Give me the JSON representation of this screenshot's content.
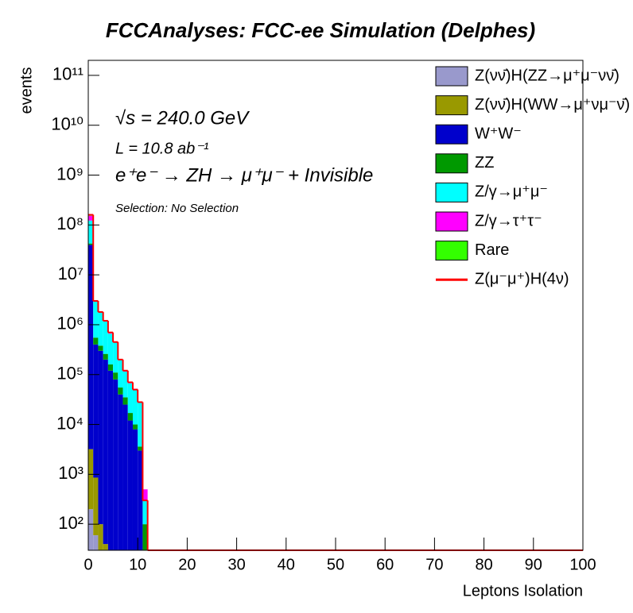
{
  "chart_data": {
    "type": "stacked_histogram",
    "title": "FCCAnalyses: FCC-ee Simulation (Delphes)",
    "annotations": [
      "√s = 240.0 GeV",
      "L = 10.8 ab⁻¹",
      "e⁺e⁻ → ZH → μ⁺μ⁻ + Invisible",
      "Selection: No Selection"
    ],
    "x_label": "Leptons Isolation",
    "y_label": "events",
    "bins": [
      0,
      1,
      2,
      3,
      4,
      5,
      6,
      7,
      8,
      9,
      10,
      11,
      12,
      100
    ],
    "series": [
      {
        "name": "Z(νν̄)H(ZZ→μ⁺μ⁻νν̄)",
        "color": "#9999cc",
        "values": [
          200,
          60,
          0,
          0,
          0,
          0,
          0,
          0,
          0,
          0,
          0,
          0,
          0
        ]
      },
      {
        "name": "Z(νν̄)H(WW→μ⁺νμ⁻ν̄)",
        "color": "#999900",
        "values": [
          3000,
          800,
          100,
          40,
          0,
          0,
          0,
          0,
          0,
          0,
          0,
          0,
          0
        ]
      },
      {
        "name": "W⁺W⁻",
        "color": "#0000cc",
        "values": [
          40000000,
          400000,
          300000,
          200000,
          120000,
          80000,
          40000,
          25000,
          12000,
          8000,
          3000,
          0,
          0
        ]
      },
      {
        "name": "ZZ",
        "color": "#009900",
        "values": [
          2500000,
          150000,
          80000,
          60000,
          40000,
          30000,
          15000,
          10000,
          5000,
          2000,
          600,
          100,
          0
        ]
      },
      {
        "name": "Z/γ→μ⁺μ⁻",
        "color": "#00ffff",
        "values": [
          80000000,
          2400000,
          1400000,
          900000,
          500000,
          330000,
          140000,
          80000,
          50000,
          40000,
          24000,
          200,
          0
        ]
      },
      {
        "name": "Z/γ→τ⁺τ⁻",
        "color": "#ff00ff",
        "values": [
          30000000,
          40000,
          30000,
          20000,
          15000,
          10000,
          6000,
          4000,
          3000,
          2000,
          800,
          200,
          0
        ]
      },
      {
        "name": "Rare",
        "color": "#33ff00",
        "values": [
          12000000,
          1000,
          500,
          300,
          200,
          100,
          50,
          30,
          20,
          10,
          0,
          0,
          0
        ]
      }
    ],
    "signal": {
      "name": "Z(μ⁻μ⁺)H(4ν)",
      "color": "#ff0000",
      "values": [
        160000000,
        3000000,
        1800000,
        1200000,
        700000,
        450000,
        200000,
        120000,
        70000,
        50000,
        28000,
        300,
        0
      ]
    },
    "xlim": [
      0,
      100
    ],
    "xticks": [
      0,
      10,
      20,
      30,
      40,
      50,
      60,
      70,
      80,
      90,
      100
    ],
    "ylim": [
      30,
      200000000000
    ],
    "log_y": true,
    "yticks": [
      {
        "value": 100,
        "label": "10²"
      },
      {
        "value": 1000,
        "label": "10³"
      },
      {
        "value": 10000,
        "label": "10⁴"
      },
      {
        "value": 100000,
        "label": "10⁵"
      },
      {
        "value": 1000000,
        "label": "10⁶"
      },
      {
        "value": 10000000,
        "label": "10⁷"
      },
      {
        "value": 100000000,
        "label": "10⁸"
      },
      {
        "value": 1000000000,
        "label": "10⁹"
      },
      {
        "value": 10000000000,
        "label": "10¹⁰"
      },
      {
        "value": 100000000000,
        "label": "10¹¹"
      }
    ],
    "legend": "upper right"
  }
}
